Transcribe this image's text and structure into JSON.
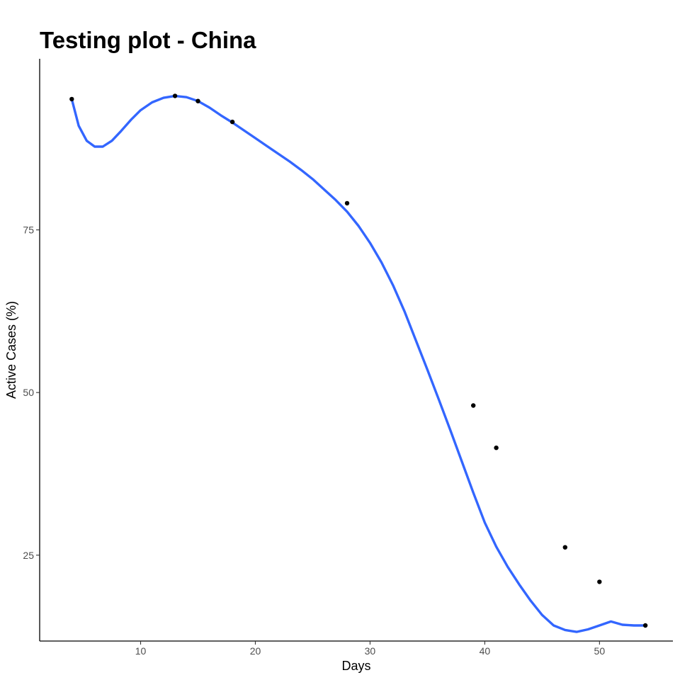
{
  "chart_data": {
    "type": "line",
    "title": "Testing plot - China",
    "xlabel": "Days",
    "ylabel": "Active Cases (%)",
    "xlim": [
      1.2,
      56.4
    ],
    "ylim": [
      11.8,
      101.3
    ],
    "x_ticks": [
      10,
      20,
      30,
      40,
      50
    ],
    "y_ticks": [
      25,
      50,
      75
    ],
    "grid": false,
    "points": [
      {
        "x": 4,
        "y": 95.1
      },
      {
        "x": 13,
        "y": 95.6
      },
      {
        "x": 15,
        "y": 94.8
      },
      {
        "x": 18,
        "y": 91.6
      },
      {
        "x": 28,
        "y": 79.1
      },
      {
        "x": 39,
        "y": 48.0
      },
      {
        "x": 41,
        "y": 41.5
      },
      {
        "x": 47,
        "y": 26.2
      },
      {
        "x": 50,
        "y": 20.9
      },
      {
        "x": 54,
        "y": 14.2
      }
    ],
    "smooth_line": {
      "color": "#3366ff",
      "x": [
        4,
        4.6,
        5.3,
        6,
        6.7,
        7.5,
        8.3,
        9.2,
        10,
        11,
        12,
        13,
        14,
        15,
        16,
        17,
        18,
        19,
        20,
        21,
        22,
        23,
        24,
        25,
        26,
        27,
        28,
        29,
        30,
        31,
        32,
        33,
        34,
        35,
        36,
        37,
        38,
        39,
        40,
        41,
        42,
        43,
        44,
        45,
        46,
        47,
        48,
        49,
        50,
        51,
        52,
        53,
        54
      ],
      "y": [
        95.1,
        91.0,
        88.7,
        87.8,
        87.8,
        88.7,
        90.2,
        92.0,
        93.4,
        94.6,
        95.3,
        95.6,
        95.4,
        94.8,
        93.8,
        92.6,
        91.5,
        90.3,
        89.1,
        87.9,
        86.7,
        85.5,
        84.2,
        82.8,
        81.2,
        79.6,
        77.8,
        75.6,
        73.0,
        70.0,
        66.5,
        62.5,
        58.0,
        53.5,
        48.9,
        44.2,
        39.4,
        34.6,
        30.0,
        26.3,
        23.2,
        20.5,
        18.0,
        15.8,
        14.2,
        13.5,
        13.2,
        13.6,
        14.2,
        14.8,
        14.3,
        14.2,
        14.2
      ]
    },
    "point_color": "#000000"
  }
}
